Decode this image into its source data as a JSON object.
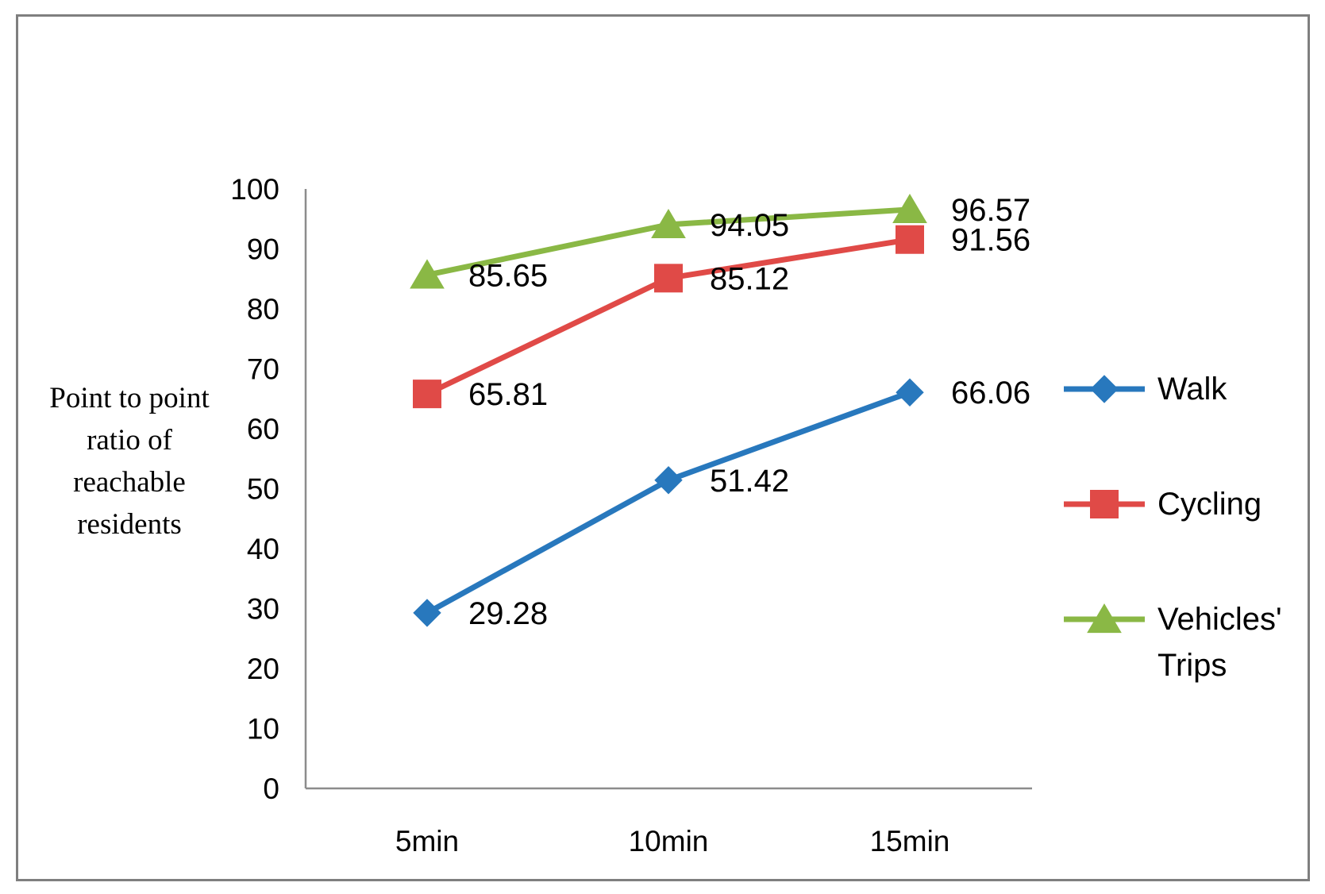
{
  "chart_data": {
    "type": "line",
    "title": "",
    "xlabel": "",
    "ylabel": "Point to point ratio of reachable residents",
    "ylabel_lines": [
      "Point to point",
      "ratio of",
      "reachable",
      "residents"
    ],
    "ylim": [
      0,
      100
    ],
    "yticks": [
      0,
      10,
      20,
      30,
      40,
      50,
      60,
      70,
      80,
      90,
      100
    ],
    "categories": [
      "5min",
      "10min",
      "15min"
    ],
    "grid": false,
    "legend_position": "right",
    "series": [
      {
        "name": "Walk",
        "legend_lines": [
          "Walk"
        ],
        "marker": "diamond",
        "color": "#2878bd",
        "values": [
          29.28,
          51.42,
          66.06
        ],
        "labels": [
          "29.28",
          "51.42",
          "66.06"
        ]
      },
      {
        "name": "Cycling",
        "legend_lines": [
          "Cycling"
        ],
        "marker": "square",
        "color": "#e04a47",
        "values": [
          65.81,
          85.12,
          91.56
        ],
        "labels": [
          "65.81",
          "85.12",
          "91.56"
        ]
      },
      {
        "name": "Vehicles' Trips",
        "legend_lines": [
          "Vehicles'",
          "Trips"
        ],
        "marker": "triangle",
        "color": "#8ab845",
        "values": [
          85.65,
          94.05,
          96.57
        ],
        "labels": [
          "85.65",
          "94.05",
          "96.57"
        ]
      }
    ]
  }
}
